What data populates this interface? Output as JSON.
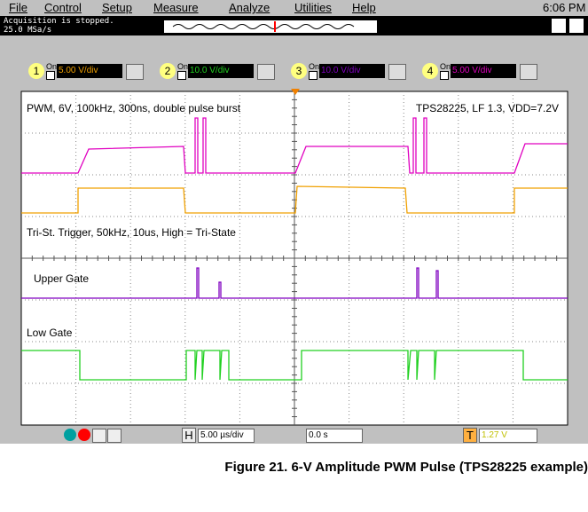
{
  "menu": {
    "items": [
      "File",
      "Control",
      "Setup",
      "Measure",
      "Analyze",
      "Utilities",
      "Help"
    ],
    "clock": "6:06 PM"
  },
  "status": {
    "line1": "Acquisition is stopped.",
    "line2": "25.0 MSa/s"
  },
  "channels": [
    {
      "number": "1",
      "on": "On",
      "scale": "5.00 V/div"
    },
    {
      "number": "2",
      "on": "On",
      "scale": "10.0 V/div"
    },
    {
      "number": "3",
      "on": "On",
      "scale": "10.0 V/div"
    },
    {
      "number": "4",
      "on": "On",
      "scale": "5.00 V/div"
    }
  ],
  "screen": {
    "annotations": [
      "PWM, 6V, 100kHz, 300ns, double pulse burst",
      "TPS28225, LF 1.3, VDD=7.2V",
      "Tri-St. Trigger, 50kHz, 10us, High = Tri-State",
      "Upper Gate",
      "Low Gate"
    ]
  },
  "toolbar": {
    "h_label": "H",
    "timebase": "5.00 µs/div",
    "delay": "0.0 s",
    "t_label": "T",
    "trigger_level": "1.27 V"
  },
  "caption": "Figure 21. 6-V Amplitude PWM Pulse (TPS28225 example)"
}
